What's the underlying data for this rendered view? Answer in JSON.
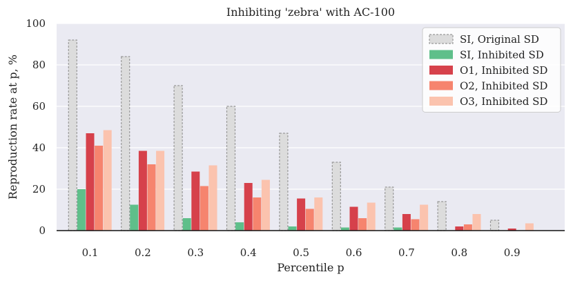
{
  "chart_data": {
    "type": "bar",
    "title": "Inhibiting 'zebra' with AC-100",
    "xlabel": "Percentile p",
    "ylabel": "Reproduction rate at p, %",
    "ylim": [
      0,
      100
    ],
    "yticks": [
      0,
      20,
      40,
      60,
      80,
      100
    ],
    "categories": [
      "0.1",
      "0.2",
      "0.3",
      "0.4",
      "0.5",
      "0.6",
      "0.7",
      "0.8",
      "0.9"
    ],
    "grid": true,
    "legend_position": "top-right",
    "series": [
      {
        "name": "SI, Original SD",
        "color": "#dcdcdc",
        "edge": "#999999",
        "dashed": true,
        "values": [
          92,
          84,
          70,
          60,
          47,
          33,
          21,
          14,
          5
        ]
      },
      {
        "name": "SI, Inhibited SD",
        "color": "#5fbf8a",
        "dashed": false,
        "values": [
          20,
          12.5,
          6,
          4,
          2,
          1.5,
          1.5,
          0,
          0
        ]
      },
      {
        "name": "O1, Inhibited SD",
        "color": "#d6414b",
        "dashed": false,
        "values": [
          47,
          38.5,
          28.5,
          23,
          15.5,
          11.5,
          8,
          2,
          1
        ]
      },
      {
        "name": "O2, Inhibited SD",
        "color": "#f6846e",
        "dashed": false,
        "values": [
          41,
          32,
          21.5,
          16,
          10.5,
          6,
          5.5,
          3,
          0
        ]
      },
      {
        "name": "O3, Inhibited SD",
        "color": "#fbc3ae",
        "dashed": false,
        "values": [
          48.5,
          38.5,
          31.5,
          24.5,
          16,
          13.5,
          12.5,
          8,
          3.5
        ]
      }
    ]
  }
}
